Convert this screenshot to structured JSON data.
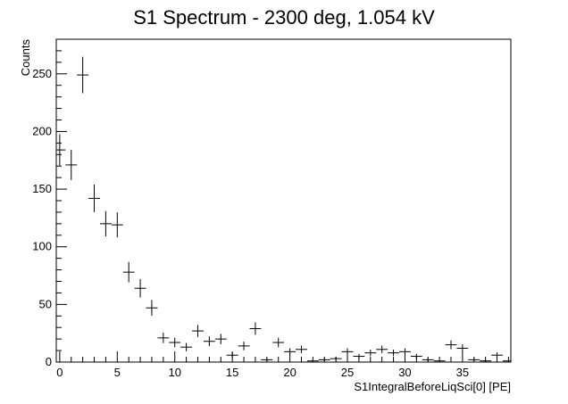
{
  "chart_data": {
    "type": "scatter",
    "title": "S1 Spectrum - 2300 deg, 1.054 kV",
    "xlabel": "S1IntegralBeforeLiqSci[0] [PE]",
    "ylabel": "Counts",
    "xlim": [
      -0.3,
      39.2
    ],
    "ylim": [
      0,
      280
    ],
    "x_ticks": [
      0,
      5,
      10,
      15,
      20,
      25,
      30,
      35
    ],
    "y_ticks": [
      0,
      50,
      100,
      150,
      200,
      250
    ],
    "grid": false,
    "legend": "none",
    "error_bars": true,
    "points": [
      {
        "x": 0,
        "y": 184
      },
      {
        "x": 1,
        "y": 171
      },
      {
        "x": 2,
        "y": 249
      },
      {
        "x": 3,
        "y": 142
      },
      {
        "x": 4,
        "y": 120
      },
      {
        "x": 5,
        "y": 119
      },
      {
        "x": 6,
        "y": 78
      },
      {
        "x": 7,
        "y": 64
      },
      {
        "x": 8,
        "y": 47
      },
      {
        "x": 9,
        "y": 21
      },
      {
        "x": 10,
        "y": 17
      },
      {
        "x": 11,
        "y": 13
      },
      {
        "x": 12,
        "y": 27
      },
      {
        "x": 13,
        "y": 18
      },
      {
        "x": 14,
        "y": 20
      },
      {
        "x": 15,
        "y": 6
      },
      {
        "x": 16,
        "y": 14
      },
      {
        "x": 17,
        "y": 29
      },
      {
        "x": 18,
        "y": 2
      },
      {
        "x": 19,
        "y": 17
      },
      {
        "x": 20,
        "y": 9
      },
      {
        "x": 21,
        "y": 11
      },
      {
        "x": 22,
        "y": 1
      },
      {
        "x": 23,
        "y": 2
      },
      {
        "x": 24,
        "y": 3
      },
      {
        "x": 25,
        "y": 9
      },
      {
        "x": 26,
        "y": 5
      },
      {
        "x": 27,
        "y": 8
      },
      {
        "x": 28,
        "y": 11
      },
      {
        "x": 29,
        "y": 8
      },
      {
        "x": 30,
        "y": 9
      },
      {
        "x": 31,
        "y": 5
      },
      {
        "x": 32,
        "y": 2
      },
      {
        "x": 33,
        "y": 1
      },
      {
        "x": 34,
        "y": 15
      },
      {
        "x": 35,
        "y": 12
      },
      {
        "x": 36,
        "y": 2
      },
      {
        "x": 37,
        "y": 1
      },
      {
        "x": 38,
        "y": 6
      },
      {
        "x": 39,
        "y": 1
      }
    ]
  }
}
